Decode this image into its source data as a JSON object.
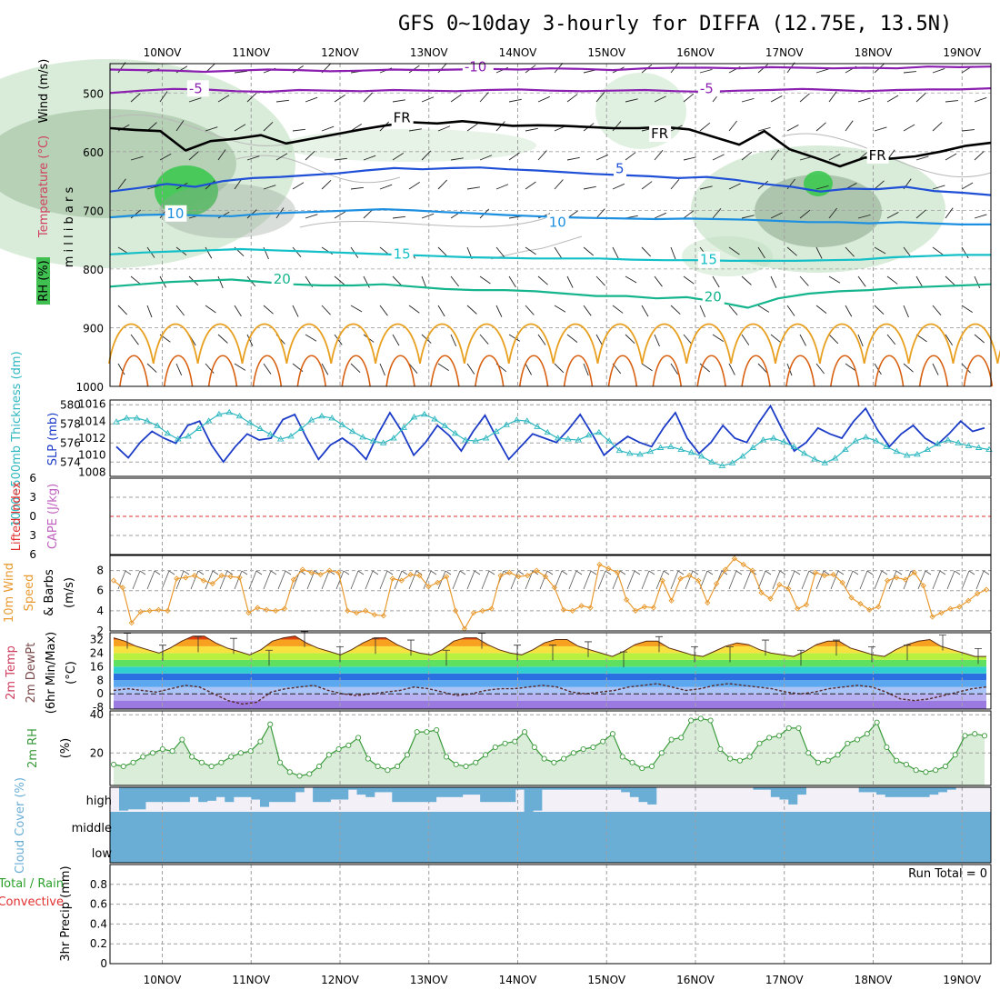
{
  "page": {
    "title": "GFS 0~10day 3-hourly for DIFFA (12.75E, 13.5N)"
  },
  "colors": {
    "purple": "#8a1fb0",
    "black": "#000000",
    "blue_dark": "#1f4fd6",
    "blue_mid": "#1c8fe0",
    "cyan": "#14c0c8",
    "teal": "#14b48c",
    "orange": "#e8a020",
    "orange_dark": "#d86010",
    "rh_green": "#3fc050",
    "slp_blue": "#1c3cc8",
    "thick_cyan": "#30b8c0",
    "wind_orange": "#e89a30",
    "rh2m_green": "#3a9a3a",
    "cloud_blue": "#6aaed6",
    "cloud_bg": "#f4f0f8",
    "grid": "#a0a0a0"
  },
  "chart_data": [
    {
      "name": "upper-air",
      "type": "line",
      "title": "GFS 0~10day 3-hourly for DIFFA (12.75E, 13.5N)",
      "xlabel": "",
      "x_ticks": [
        "10NOV",
        "11NOV",
        "12NOV",
        "13NOV",
        "14NOV",
        "15NOV",
        "16NOV",
        "17NOV",
        "18NOV",
        "19NOV"
      ],
      "ylabel": "m i l l i b a r s",
      "ylabel_parts": [
        "Wind (m/s)",
        "Temperature (°C)",
        "RH (%)"
      ],
      "ylim": [
        450,
        1000
      ],
      "y_ticks": [
        500,
        600,
        700,
        800,
        900,
        1000
      ],
      "isotherm_labels": [
        {
          "text": "-10",
          "day": 3.4,
          "p": 463
        },
        {
          "text": "-5",
          "day": 0.3,
          "p": 500
        },
        {
          "text": "-5",
          "day": 6.05,
          "p": 500
        },
        {
          "text": "FR",
          "day": 2.6,
          "p": 550
        },
        {
          "text": "FR",
          "day": 5.5,
          "p": 577
        },
        {
          "text": "FR",
          "day": 7.95,
          "p": 614
        },
        {
          "text": "5",
          "day": 5.1,
          "p": 637
        },
        {
          "text": "10",
          "day": 0.05,
          "p": 713
        },
        {
          "text": "10",
          "day": 4.35,
          "p": 728
        },
        {
          "text": "15",
          "day": 2.6,
          "p": 782
        },
        {
          "text": "15",
          "day": 6.05,
          "p": 792
        },
        {
          "text": "20",
          "day": 1.25,
          "p": 825
        },
        {
          "text": "20",
          "day": 6.1,
          "p": 855
        }
      ],
      "series": [
        {
          "name": "-10C",
          "values": [
            460,
            461,
            462,
            464,
            462,
            460,
            461,
            463,
            462,
            460,
            461,
            460,
            459,
            460,
            458,
            459,
            461,
            458,
            457,
            457,
            458,
            456,
            457,
            458,
            457,
            458,
            455,
            456,
            455
          ]
        },
        {
          "name": "-5C",
          "values": [
            500,
            496,
            493,
            494,
            497,
            498,
            495,
            496,
            497,
            495,
            496,
            497,
            495,
            494,
            496,
            497,
            496,
            495,
            497,
            498,
            496,
            495,
            493,
            495,
            497,
            495,
            494,
            494,
            492
          ]
        },
        {
          "name": "FR",
          "values": [
            560,
            563,
            565,
            598,
            582,
            578,
            572,
            586,
            578,
            570,
            562,
            555,
            550,
            552,
            548,
            552,
            556,
            555,
            556,
            558,
            560,
            560,
            558,
            562,
            575,
            588,
            565,
            596,
            610,
            625,
            610,
            612,
            608,
            600,
            590,
            585
          ]
        },
        {
          "name": "5C",
          "values": [
            668,
            662,
            655,
            660,
            650,
            645,
            643,
            640,
            637,
            632,
            628,
            630,
            628,
            627,
            630,
            632,
            635,
            638,
            640,
            642,
            645,
            643,
            648,
            655,
            660,
            668,
            663,
            664,
            660,
            667,
            670,
            674
          ]
        },
        {
          "name": "10C",
          "values": [
            712,
            708,
            707,
            709,
            710,
            706,
            704,
            702,
            700,
            698,
            700,
            703,
            705,
            708,
            710,
            712,
            713,
            714,
            715,
            714,
            715,
            716,
            718,
            720,
            720,
            722,
            720,
            722,
            724,
            724
          ]
        },
        {
          "name": "15C",
          "values": [
            775,
            772,
            770,
            768,
            766,
            768,
            770,
            772,
            774,
            776,
            778,
            780,
            781,
            782,
            782,
            782,
            784,
            785,
            785,
            786,
            786,
            786,
            785,
            784,
            780,
            778,
            776,
            776
          ]
        },
        {
          "name": "20C",
          "values": [
            830,
            826,
            822,
            820,
            818,
            822,
            826,
            828,
            828,
            826,
            830,
            834,
            836,
            836,
            838,
            842,
            846,
            846,
            850,
            848,
            856,
            866,
            850,
            842,
            838,
            836,
            832,
            830,
            828,
            826
          ]
        }
      ]
    },
    {
      "name": "slp-thickness",
      "type": "line",
      "ylabel_left": "1000~500mb Thickness (dm)",
      "ylabel_right": "SLP (mb)",
      "y_ticks_left": [
        574,
        576,
        578,
        580
      ],
      "y_ticks_right": [
        1008,
        1010,
        1012,
        1014,
        1016
      ],
      "ylim_left": [
        572.5,
        580.5
      ],
      "ylim_right": [
        1007.5,
        1016.5
      ],
      "series": [
        {
          "name": "SLP",
          "values": [
            1011.0,
            1009.7,
            1011.5,
            1012.8,
            1012.0,
            1011.4,
            1013.5,
            1014.0,
            1011.2,
            1009.2,
            1011.0,
            1012.5,
            1011.8,
            1012.0,
            1014.2,
            1014.8,
            1012.0,
            1009.5,
            1011.2,
            1012.0,
            1011.0,
            1009.5,
            1012.5,
            1015.0,
            1012.8,
            1010.0,
            1011.5,
            1013.5,
            1012.3,
            1010.5,
            1012.8,
            1014.7,
            1012.0,
            1009.5,
            1011.0,
            1012.5,
            1012.0,
            1011.5,
            1013.0,
            1014.8,
            1012.5,
            1010.0,
            1011.2,
            1012.2,
            1011.5,
            1011.0,
            1013.2,
            1015.0,
            1012.0,
            1010.2,
            1011.5,
            1013.5,
            1012.0,
            1011.5,
            1013.8,
            1015.8,
            1013.0,
            1010.5,
            1011.5,
            1013.2,
            1012.5,
            1012.0,
            1014.0,
            1015.5,
            1013.0,
            1011.0,
            1012.5,
            1013.5,
            1012.0,
            1011.2,
            1012.5,
            1014.0,
            1012.8,
            1013.2
          ]
        },
        {
          "name": "Thickness",
          "values": [
            578.2,
            578.6,
            578.6,
            578.3,
            577.8,
            577.0,
            576.4,
            576.7,
            577.5,
            578.3,
            579.0,
            579.2,
            578.8,
            578.1,
            577.5,
            576.9,
            576.4,
            576.7,
            577.5,
            578.4,
            578.8,
            578.6,
            577.9,
            577.2,
            576.6,
            576.2,
            576.0,
            576.5,
            577.6,
            578.7,
            579.0,
            578.5,
            577.8,
            577.0,
            576.3,
            576.2,
            576.5,
            577.2,
            577.9,
            578.4,
            578.3,
            577.7,
            577.1,
            576.5,
            576.4,
            576.3,
            576.8,
            577.1,
            576.2,
            575.2,
            574.9,
            574.8,
            575.1,
            575.5,
            575.6,
            575.3,
            575.0,
            574.6,
            574.0,
            573.6,
            573.9,
            574.6,
            575.5,
            576.3,
            576.5,
            576.1,
            575.6,
            574.9,
            574.3,
            573.9,
            574.4,
            575.3,
            576.2,
            576.6,
            576.2,
            575.6,
            575.1,
            574.7,
            574.8,
            575.3,
            575.9,
            576.3,
            576.0,
            575.7,
            575.5,
            575.3
          ]
        }
      ]
    },
    {
      "name": "stability",
      "type": "line",
      "ylabel_left": "Lifted Index",
      "ylabel_right": "CAPE (J/kg)",
      "y_ticks": [
        "6",
        "3",
        "0",
        "3",
        "6"
      ],
      "ylim": [
        -6,
        6
      ],
      "series": [
        {
          "name": "zero",
          "values": [
            0
          ]
        }
      ]
    },
    {
      "name": "10m-wind",
      "type": "line",
      "ylabel": "10m Wind Speed & Barbs (m/s)",
      "ylabel_parts": [
        "10m Wind",
        "Speed",
        "& Barbs",
        "(m/s)"
      ],
      "y_ticks": [
        2,
        4,
        6,
        8
      ],
      "ylim": [
        2,
        9.5
      ],
      "series": [
        {
          "name": "wind speed",
          "values": [
            7.0,
            6.3,
            2.8,
            3.9,
            4.0,
            4.1,
            4.0,
            7.2,
            7.3,
            7.5,
            7.0,
            6.7,
            7.5,
            7.4,
            7.3,
            3.8,
            4.3,
            4.1,
            4.0,
            4.2,
            7.1,
            8.1,
            7.8,
            7.6,
            8.0,
            7.8,
            4.0,
            3.8,
            4.0,
            3.6,
            3.5,
            7.2,
            7.0,
            7.6,
            7.5,
            6.4,
            6.8,
            7.4,
            4.0,
            2.2,
            3.8,
            4.0,
            4.2,
            7.5,
            7.8,
            7.4,
            7.5,
            8.0,
            7.4,
            6.3,
            4.1,
            4.0,
            4.5,
            4.3,
            8.6,
            8.2,
            7.8,
            5.1,
            4.0,
            4.4,
            4.3,
            7.0,
            5.0,
            7.2,
            7.5,
            7.0,
            4.8,
            6.7,
            8.1,
            9.2,
            8.6,
            8.0,
            5.8,
            5.2,
            6.6,
            6.2,
            4.2,
            4.6,
            7.8,
            7.5,
            7.6,
            6.8,
            5.3,
            4.7,
            4.1,
            4.4,
            7.0,
            7.3,
            7.1,
            7.8,
            6.5,
            3.4,
            3.8,
            4.2,
            4.4,
            5.0,
            5.7,
            6.1
          ]
        }
      ]
    },
    {
      "name": "2m-temp",
      "type": "area",
      "ylabel_parts": [
        "2m Temp",
        "2m DewPt",
        "(6hr Min/Max)",
        "(°C)"
      ],
      "y_ticks": [
        -8,
        0,
        8,
        16,
        24,
        32
      ],
      "ylim": [
        -9,
        36
      ],
      "series": [
        {
          "name": "2m Temp",
          "values": [
            33,
            31,
            28,
            26,
            24,
            27,
            31,
            34,
            34,
            30,
            27,
            25,
            23,
            26,
            31,
            33,
            34,
            30,
            27,
            25,
            23,
            26,
            30,
            33,
            33,
            29,
            26,
            24,
            23,
            26,
            31,
            33,
            33,
            29,
            26,
            24,
            23,
            26,
            30,
            32,
            32,
            28,
            26,
            24,
            22,
            25,
            29,
            31,
            31,
            27,
            25,
            23,
            22,
            25,
            28,
            30,
            29,
            26,
            24,
            23,
            22,
            25,
            29,
            31,
            31,
            27,
            25,
            23,
            22,
            26,
            29,
            31,
            32,
            28,
            26,
            24,
            22,
            22
          ]
        },
        {
          "name": "2m DewPt",
          "values": [
            2,
            3,
            2,
            1,
            3,
            5,
            4,
            0,
            -4,
            -6,
            -5,
            1,
            3,
            4,
            5,
            2,
            0,
            -1,
            0,
            1,
            2,
            4,
            3,
            1,
            -1,
            0,
            2,
            3,
            3,
            4,
            5,
            4,
            1,
            0,
            1,
            2,
            4,
            5,
            6,
            4,
            2,
            3,
            5,
            6,
            5,
            4,
            3,
            1,
            0,
            1,
            3,
            4,
            5,
            4,
            1,
            -3,
            -4,
            -3,
            -1,
            1,
            3,
            4
          ]
        }
      ]
    },
    {
      "name": "2m-rh",
      "type": "area",
      "ylabel": "2m RH",
      "ylabel_unit": "(%)",
      "y_ticks": [
        20,
        40
      ],
      "ylim": [
        3,
        42
      ],
      "series": [
        {
          "name": "2m RH",
          "values": [
            14,
            13,
            15,
            18,
            20,
            22,
            21,
            27,
            18,
            15,
            13,
            15,
            18,
            20,
            21,
            26,
            35,
            15,
            10,
            8,
            9,
            13,
            19,
            22,
            24,
            28,
            17,
            13,
            11,
            13,
            19,
            31,
            31,
            32,
            18,
            14,
            13,
            15,
            19,
            23,
            25,
            26,
            31,
            23,
            17,
            15,
            17,
            20,
            22,
            23,
            26,
            30,
            18,
            15,
            12,
            13,
            20,
            27,
            28,
            37,
            38,
            37,
            22,
            17,
            16,
            18,
            25,
            28,
            29,
            33,
            33,
            20,
            15,
            16,
            19,
            25,
            27,
            30,
            36,
            23,
            16,
            14,
            11,
            10,
            11,
            13,
            19,
            29,
            30,
            29
          ]
        }
      ]
    },
    {
      "name": "cloud-cover",
      "type": "bar",
      "ylabel": "Cloud Cover (%)",
      "levels": [
        "high",
        "middle",
        "low"
      ],
      "series": [
        {
          "name": "high cloud",
          "values": [
            95,
            90,
            90,
            60,
            60,
            60,
            60,
            60,
            40,
            60,
            55,
            40,
            60,
            40,
            40,
            50,
            80,
            60,
            60,
            60,
            20,
            0,
            60,
            60,
            50,
            50,
            10,
            30,
            40,
            20,
            20,
            60,
            60,
            60,
            60,
            60,
            40,
            40,
            40,
            30,
            30,
            60,
            60,
            60,
            60,
            10,
            100,
            95,
            10,
            10,
            10,
            10,
            10,
            10,
            10,
            10,
            10,
            20,
            40,
            60,
            70,
            0,
            0,
            0,
            0,
            0,
            0,
            0,
            0,
            0,
            0,
            0,
            10,
            10,
            40,
            50,
            70,
            30,
            0,
            0,
            0,
            0,
            0,
            0,
            20,
            20,
            30,
            40,
            40,
            40,
            40,
            40,
            30,
            20,
            10,
            0,
            0,
            0,
            0
          ]
        }
      ]
    },
    {
      "name": "precip",
      "type": "bar",
      "ylabel": "3hr Precip (mm)",
      "legend": [
        "Total / Rain",
        "Convective"
      ],
      "annotation": "Run Total = 0",
      "y_ticks": [
        "0",
        "0.2",
        "0.4",
        "0.6",
        "0.8"
      ],
      "ylim": [
        0,
        1
      ],
      "series": [
        {
          "name": "precip",
          "values": [
            0
          ]
        }
      ]
    }
  ]
}
